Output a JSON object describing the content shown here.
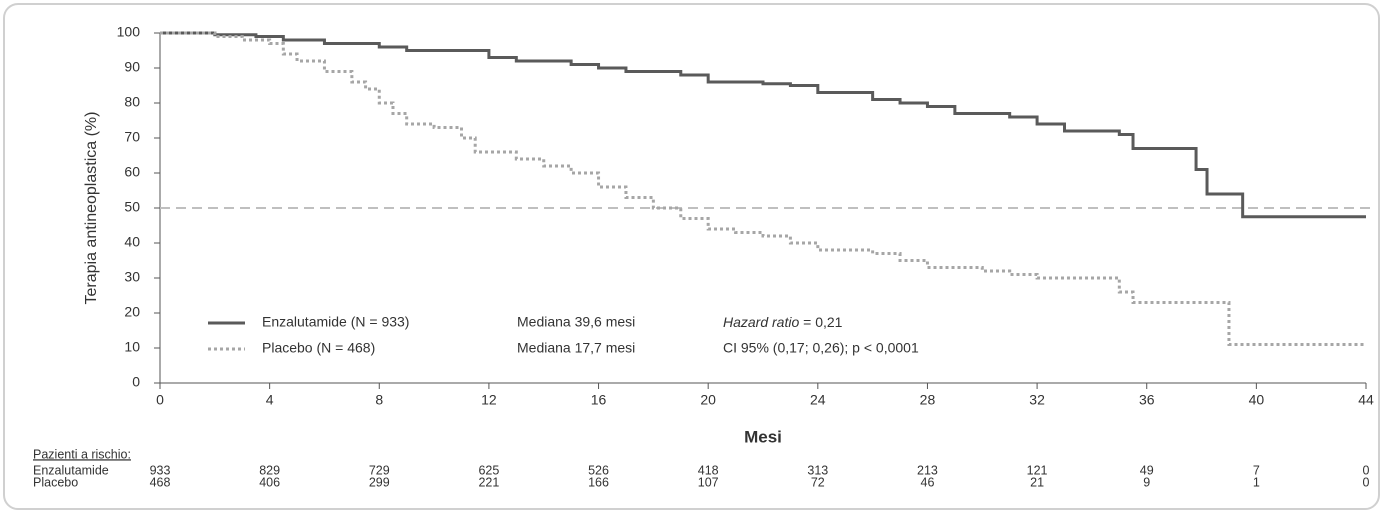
{
  "chart_data": {
    "type": "step",
    "ylabel": "Terapia antineoplastica (%)",
    "xlabel": "Mesi",
    "xlim": [
      0,
      44
    ],
    "xticks": [
      0,
      4,
      8,
      12,
      16,
      20,
      24,
      28,
      32,
      36,
      40,
      44
    ],
    "ylim": [
      0,
      100
    ],
    "yticks": [
      0,
      10,
      20,
      30,
      40,
      50,
      60,
      70,
      80,
      90,
      100
    ],
    "hline": 50,
    "hline_color": "#bfbfbf",
    "series": [
      {
        "name": "Enzalutamide (N = 933)",
        "color": "#5a5a5a",
        "dashed": false,
        "median": "Mediana 39,6 mesi",
        "x": [
          0,
          2,
          3.5,
          4.5,
          6,
          8,
          9,
          12,
          13,
          15,
          16,
          17,
          19,
          20,
          22,
          23,
          24,
          26,
          27,
          28,
          29,
          31,
          32,
          33,
          35,
          35.5,
          37.8,
          38.2,
          39.5,
          44
        ],
        "values": [
          100,
          99.5,
          99,
          98,
          97,
          96,
          95,
          93,
          92,
          91,
          90,
          89,
          88,
          86,
          85.5,
          85,
          83,
          81,
          80,
          79,
          77,
          76,
          74,
          72,
          71,
          67,
          61,
          54,
          47.5,
          47.5
        ]
      },
      {
        "name": "Placebo (N = 468)",
        "color": "#a6a6a6",
        "dashed": true,
        "median": "Mediana 17,7 mesi",
        "x": [
          0,
          2,
          3,
          4,
          4.5,
          5,
          6,
          7,
          7.5,
          8,
          8.5,
          9,
          10,
          11,
          11.5,
          13,
          14,
          15,
          16,
          17,
          18,
          19,
          20,
          21,
          22,
          23,
          24,
          26,
          27,
          28,
          30,
          31,
          32,
          34.5,
          35,
          35.5,
          39,
          44
        ],
        "values": [
          100,
          99,
          98,
          97,
          94,
          92,
          89,
          86,
          84,
          80,
          77,
          74,
          73,
          70,
          66,
          64,
          62,
          60,
          56,
          53,
          50,
          47,
          44,
          43,
          42,
          40,
          38,
          37,
          35,
          33,
          32,
          31,
          30,
          30,
          26,
          23,
          11,
          11
        ]
      }
    ],
    "hazard_label": "Hazard ratio",
    "hazard_value": " = 0,21",
    "ci": "CI 95% (0,17; 0,26); p < 0,0001",
    "risk_table": {
      "title": "Pazienti a rischio:",
      "rows": [
        {
          "label": "Enzalutamide",
          "values": [
            933,
            829,
            729,
            625,
            526,
            418,
            313,
            213,
            121,
            49,
            7,
            0
          ]
        },
        {
          "label": "Placebo",
          "values": [
            468,
            406,
            299,
            221,
            166,
            107,
            72,
            46,
            21,
            9,
            1,
            0
          ]
        }
      ]
    }
  }
}
